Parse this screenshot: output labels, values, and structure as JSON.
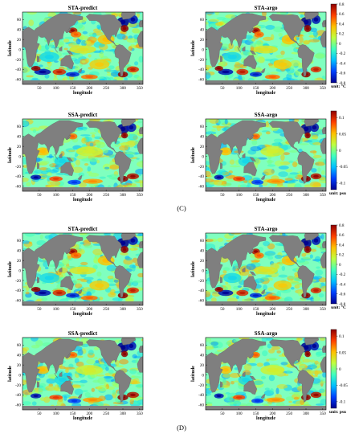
{
  "panels": [
    {
      "id": "C",
      "label": "(C)",
      "maps": [
        {
          "title": "STA-predict",
          "xlabel": "longitude",
          "ylabel": "latitude",
          "variable": "STA"
        },
        {
          "title": "STA-argo",
          "xlabel": "longitude",
          "ylabel": "latitude",
          "variable": "STA"
        },
        {
          "title": "SSA-predict",
          "xlabel": "longitude",
          "ylabel": "latitude",
          "variable": "SSA"
        },
        {
          "title": "SSA-argo",
          "xlabel": "longitude",
          "ylabel": "latitude",
          "variable": "SSA"
        }
      ]
    },
    {
      "id": "D",
      "label": "(D)",
      "maps": [
        {
          "title": "STA-predict",
          "xlabel": "longitude",
          "ylabel": "latitude",
          "variable": "STA"
        },
        {
          "title": "STA-argo",
          "xlabel": "longitude",
          "ylabel": "latitude",
          "variable": "STA"
        },
        {
          "title": "SSA-predict",
          "xlabel": "longitude",
          "ylabel": "latitude",
          "variable": "SSA"
        },
        {
          "title": "SSA-argo",
          "xlabel": "longitude",
          "ylabel": "latitude",
          "variable": "SSA"
        }
      ]
    }
  ],
  "chart_data": {
    "type": "heatmap",
    "x_ticks": [
      "50",
      "100",
      "150",
      "200",
      "250",
      "300",
      "350"
    ],
    "x_tick_values": [
      50,
      100,
      150,
      200,
      250,
      300,
      350
    ],
    "xlim": [
      0,
      360
    ],
    "y_ticks": [
      "60",
      "40",
      "20",
      "0",
      "-20",
      "-40",
      "-60"
    ],
    "y_tick_values": [
      60,
      40,
      20,
      0,
      -20,
      -40,
      -60
    ],
    "ylim": [
      -70,
      75
    ],
    "colorbars": {
      "STA": {
        "ticks": [
          "0.8",
          "0.6",
          "0.4",
          "0.2",
          "0",
          "-0.2",
          "-0.4",
          "-0.6",
          "-0.8"
        ],
        "tick_values": [
          0.8,
          0.6,
          0.4,
          0.2,
          0,
          -0.2,
          -0.4,
          -0.6,
          -0.8
        ],
        "range": [
          -0.8,
          0.8
        ],
        "unit": "unit: °C"
      },
      "SSA": {
        "ticks": [
          "0.1",
          "0.05",
          "0",
          "-0.05",
          "-0.1"
        ],
        "tick_values": [
          0.1,
          0.05,
          0,
          -0.05,
          -0.1
        ],
        "range": [
          -0.12,
          0.12
        ],
        "unit": "unit: psu"
      }
    },
    "colormap": [
      "#00008f",
      "#0040ff",
      "#00c0ff",
      "#40ffbf",
      "#bfff40",
      "#ffc000",
      "#ff4000",
      "#8f0000"
    ],
    "land_color": "#7f7f7f",
    "ocean_base_color": "#7fffbf"
  }
}
